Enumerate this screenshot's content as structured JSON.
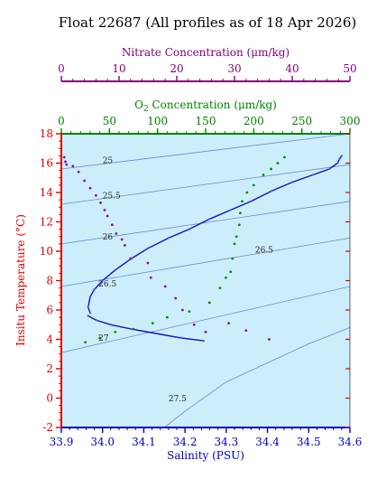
{
  "chart_data": {
    "type": "scatter",
    "title": "Float 22687  (All profiles as of 18 Apr 2026)",
    "axes": {
      "nitrate": {
        "label": "Nitrate Concentration (μm/kg)",
        "range": [
          0,
          50
        ],
        "ticks": [
          0,
          10,
          20,
          30,
          40,
          50
        ],
        "color": "#800080"
      },
      "oxygen": {
        "label": "O₂ Concentration (μm/kg)",
        "range": [
          0,
          300
        ],
        "ticks": [
          0,
          50,
          100,
          150,
          200,
          250,
          300
        ],
        "color": "#008000"
      },
      "salinity": {
        "label": "Salinity (PSU)",
        "range": [
          33.9,
          34.6
        ],
        "ticks": [
          "33.9",
          "34.0",
          "34.1",
          "34.2",
          "34.3",
          "34.4",
          "34.5",
          "34.6"
        ],
        "color": "#0000c0"
      },
      "temperature": {
        "label": "Insitu Temperature (°C)",
        "range": [
          -2,
          18
        ],
        "ticks": [
          -2,
          0,
          2,
          4,
          6,
          8,
          10,
          12,
          14,
          16,
          18
        ],
        "color": "#dd0000"
      }
    },
    "isopycnals": [
      {
        "label": "25",
        "points": [
          [
            33.9,
            15.6
          ],
          [
            34.6,
            18.0
          ]
        ],
        "label_at": [
          34.0,
          16.0
        ]
      },
      {
        "label": "25.5",
        "points": [
          [
            33.9,
            13.2
          ],
          [
            34.6,
            15.9
          ]
        ],
        "label_at": [
          34.0,
          13.6
        ]
      },
      {
        "label": "26",
        "points": [
          [
            33.9,
            10.5
          ],
          [
            34.6,
            13.4
          ]
        ],
        "label_at": [
          34.0,
          10.8
        ]
      },
      {
        "label": "26.5",
        "points": [
          [
            33.9,
            7.6
          ],
          [
            34.6,
            10.9
          ]
        ],
        "label_at": [
          34.37,
          9.9
        ]
      },
      {
        "label": "26.5",
        "points": [],
        "label_at": [
          33.99,
          7.6
        ]
      },
      {
        "label": "27",
        "points": [
          [
            33.9,
            3.1
          ],
          [
            34.6,
            7.6
          ]
        ],
        "label_at": [
          33.99,
          3.9
        ]
      },
      {
        "label": "27.5",
        "points": [
          [
            34.15,
            -2.0
          ],
          [
            34.2,
            -0.9
          ],
          [
            34.3,
            1.1
          ],
          [
            34.4,
            2.4
          ],
          [
            34.5,
            3.7
          ],
          [
            34.6,
            4.8
          ]
        ],
        "label_at": [
          34.16,
          -0.2
        ]
      }
    ],
    "series": [
      {
        "name": "",
        "axis": "salinity",
        "kind": "line",
        "color": "#1010c0",
        "points": [
          [
            33.97,
            5.8
          ],
          [
            33.965,
            6.2
          ],
          [
            33.97,
            6.9
          ],
          [
            33.98,
            7.4
          ],
          [
            34.0,
            8.0
          ],
          [
            34.03,
            8.7
          ],
          [
            34.07,
            9.5
          ],
          [
            34.11,
            10.2
          ],
          [
            34.16,
            10.9
          ],
          [
            34.21,
            11.5
          ],
          [
            34.26,
            12.2
          ],
          [
            34.31,
            12.8
          ],
          [
            34.36,
            13.4
          ],
          [
            34.41,
            14.1
          ],
          [
            34.46,
            14.7
          ],
          [
            34.51,
            15.2
          ],
          [
            34.55,
            15.6
          ],
          [
            34.57,
            16.0
          ],
          [
            34.575,
            16.3
          ],
          [
            34.58,
            16.5
          ]
        ]
      },
      {
        "name": "",
        "axis": "salinity",
        "kind": "line",
        "color": "#1010c0",
        "points": [
          [
            33.965,
            5.6
          ],
          [
            33.985,
            5.3
          ],
          [
            34.02,
            5.0
          ],
          [
            34.07,
            4.7
          ],
          [
            34.13,
            4.4
          ],
          [
            34.19,
            4.1
          ],
          [
            34.245,
            3.9
          ]
        ]
      },
      {
        "name": "",
        "axis": "nitrate",
        "kind": "points",
        "color": "#9900aa",
        "points": [
          [
            0.5,
            16.4
          ],
          [
            0.7,
            16.1
          ],
          [
            0.9,
            15.9
          ],
          [
            2.0,
            15.8
          ],
          [
            3.0,
            15.4
          ],
          [
            4.0,
            14.8
          ],
          [
            5.0,
            14.3
          ],
          [
            6.0,
            13.8
          ],
          [
            6.8,
            13.3
          ],
          [
            7.5,
            12.8
          ],
          [
            8.0,
            12.4
          ],
          [
            8.8,
            11.8
          ],
          [
            9.5,
            11.2
          ],
          [
            10.5,
            10.8
          ],
          [
            11.0,
            10.4
          ],
          [
            12.0,
            9.5
          ],
          [
            15.0,
            9.2
          ],
          [
            15.5,
            8.2
          ],
          [
            18.0,
            7.6
          ],
          [
            19.8,
            6.8
          ],
          [
            21.0,
            6.0
          ],
          [
            23.0,
            5.0
          ],
          [
            25.0,
            4.5
          ],
          [
            29.0,
            5.1
          ],
          [
            32.0,
            4.6
          ],
          [
            36.0,
            4.0
          ]
        ]
      },
      {
        "name": "",
        "axis": "oxygen",
        "kind": "points",
        "color": "#008800",
        "points": [
          [
            232,
            16.4
          ],
          [
            225,
            16.0
          ],
          [
            218,
            15.6
          ],
          [
            210,
            15.2
          ],
          [
            200,
            14.5
          ],
          [
            193,
            14.0
          ],
          [
            188,
            13.4
          ],
          [
            186,
            12.6
          ],
          [
            185,
            11.8
          ],
          [
            182,
            11.0
          ],
          [
            180,
            10.5
          ],
          [
            178,
            9.5
          ],
          [
            176,
            8.6
          ],
          [
            171,
            8.2
          ],
          [
            165,
            7.5
          ],
          [
            154,
            6.5
          ],
          [
            133,
            5.9
          ],
          [
            110,
            5.5
          ],
          [
            95,
            5.1
          ],
          [
            75,
            4.7
          ],
          [
            56,
            4.5
          ],
          [
            40,
            4.1
          ],
          [
            25,
            3.8
          ]
        ]
      }
    ]
  }
}
